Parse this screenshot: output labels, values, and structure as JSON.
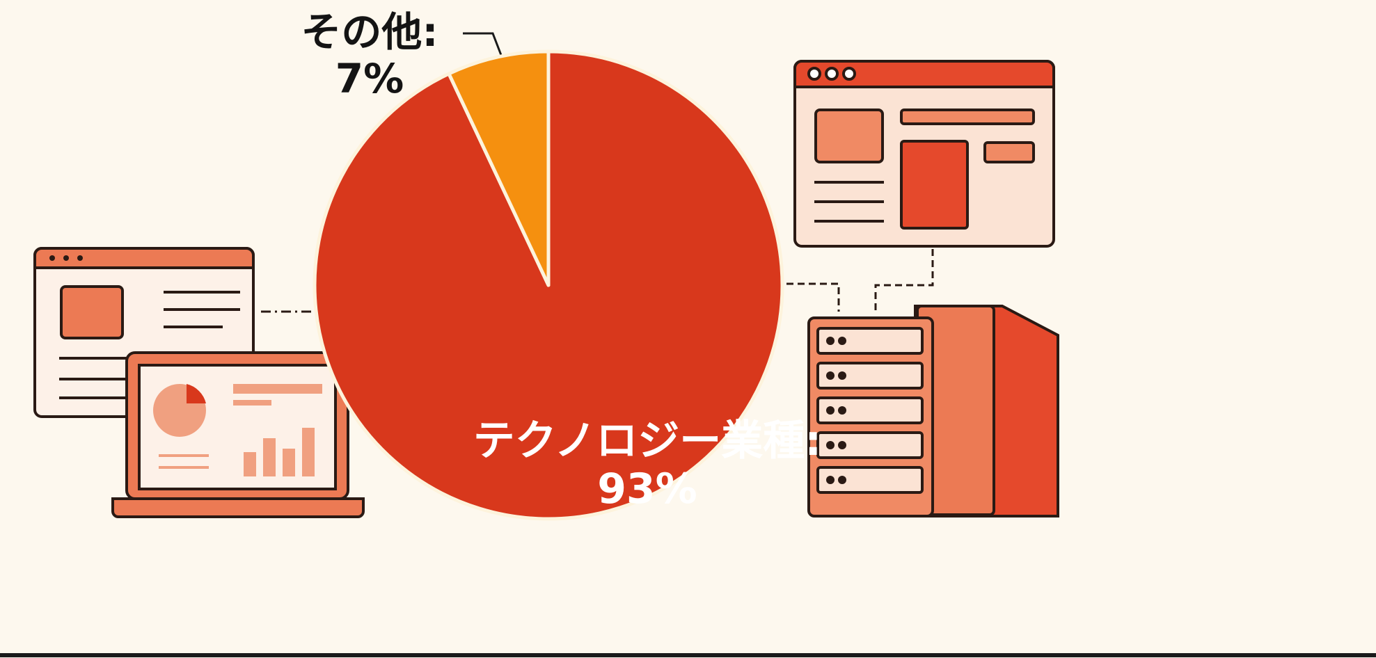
{
  "chart_data": {
    "type": "pie",
    "values": [
      93,
      7
    ],
    "value_labels": [
      "テクノロジー業種: 93%",
      "その他: 7%"
    ],
    "colors": [
      "#d8381c",
      "#f5900f"
    ],
    "start_angle": 0,
    "direction": "clockwise"
  }
}
